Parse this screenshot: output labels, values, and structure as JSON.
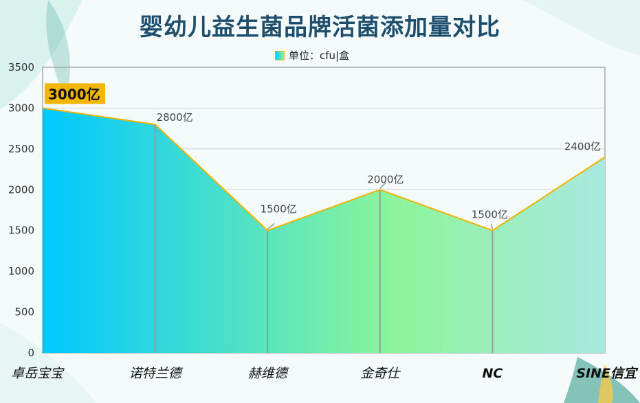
{
  "chart_data": {
    "type": "area",
    "title": "婴幼儿益生菌品牌活菌添加量对比",
    "legend": {
      "label": "单位：cfu|盒",
      "position": "top"
    },
    "categories": [
      "卓岳宝宝",
      "诺特兰德",
      "赫维德",
      "金奇仕",
      "NC",
      "SINE信宜"
    ],
    "values": [
      3000,
      2800,
      1500,
      2000,
      1500,
      2400
    ],
    "data_labels": [
      "3000亿",
      "2800亿",
      "1500亿",
      "2000亿",
      "1500亿",
      "2400亿"
    ],
    "ylim": [
      0,
      3500
    ],
    "yticks": [
      0,
      500,
      1000,
      1500,
      2000,
      2500,
      3000,
      3500
    ],
    "grid": true,
    "colors": {
      "area_start": "#00c8ff",
      "area_mid": "#8cf59a",
      "area_end": "#a9e8e0",
      "line": "#f0b400",
      "highlight_bg": "#f3b600",
      "grid": "#d0d0d0",
      "drop_line": "#9a9a9a"
    }
  }
}
